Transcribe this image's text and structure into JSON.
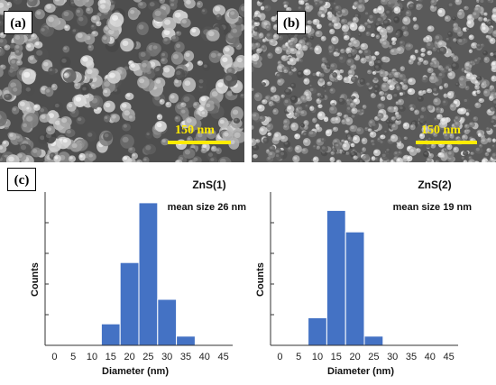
{
  "panels": {
    "a": {
      "label": "(a)",
      "scale_text": "150 nm",
      "colors": {
        "scale": "#ffeb00"
      }
    },
    "b": {
      "label": "(b)",
      "scale_text": "150 nm",
      "colors": {
        "scale": "#ffeb00"
      }
    },
    "c": {
      "label": "(c)"
    }
  },
  "chart_data": [
    {
      "type": "bar",
      "title": "ZnS(1)",
      "annotation": "mean size 26 nm",
      "xlabel": "Diameter (nm)",
      "ylabel": "Counts",
      "xlim": [
        -2.5,
        47.5
      ],
      "xticks": [
        0,
        5,
        10,
        15,
        20,
        25,
        30,
        35,
        40,
        45
      ],
      "bin_width": 5,
      "bins": [
        15,
        20,
        25,
        30,
        35
      ],
      "values": [
        0.14,
        0.54,
        0.93,
        0.3,
        0.06
      ],
      "ylim": [
        0,
        1
      ],
      "yticks_shown": false,
      "color": "#4472c4"
    },
    {
      "type": "bar",
      "title": "ZnS(2)",
      "annotation": "mean size 19 nm",
      "xlabel": "Diameter (nm)",
      "ylabel": "Counts",
      "xlim": [
        -2.5,
        47.5
      ],
      "xticks": [
        0,
        5,
        10,
        15,
        20,
        25,
        30,
        35,
        40,
        45
      ],
      "bin_width": 5,
      "bins": [
        10,
        15,
        20,
        25
      ],
      "values": [
        0.18,
        0.88,
        0.74,
        0.06
      ],
      "ylim": [
        0,
        1
      ],
      "yticks_shown": false,
      "color": "#4472c4"
    }
  ]
}
